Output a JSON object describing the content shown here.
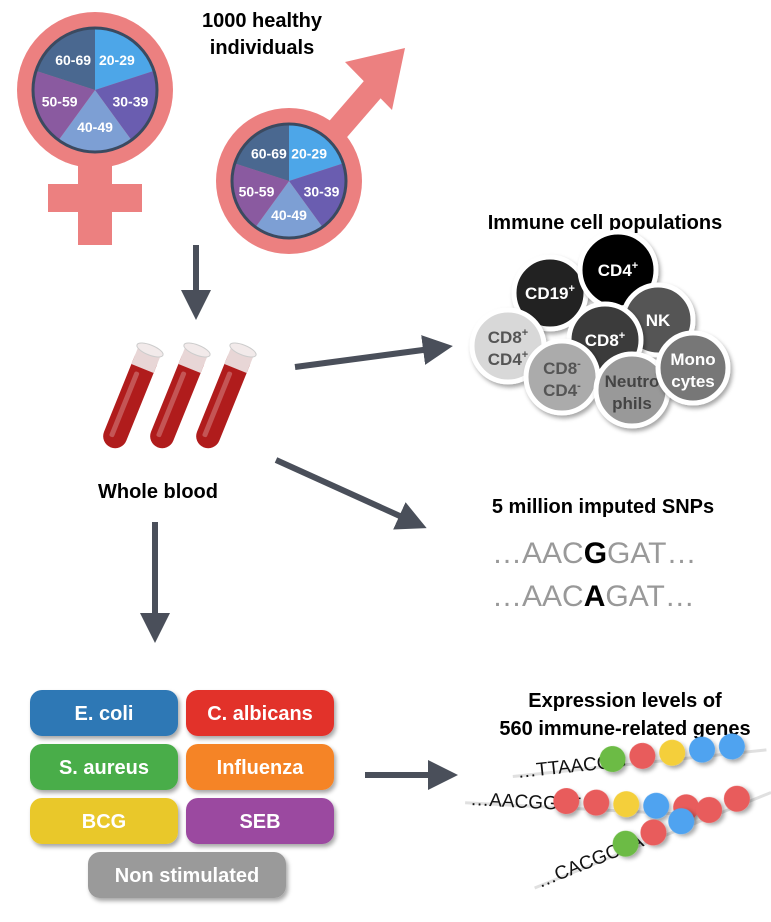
{
  "cohort": {
    "title_line1": "1000 healthy",
    "title_line2": "individuals",
    "age_groups": [
      "20-29",
      "30-39",
      "40-49",
      "50-59",
      "60-69"
    ],
    "age_colors": [
      "#4da6e8",
      "#6a5db0",
      "#7d9fd4",
      "#8a5aa0",
      "#4a6890"
    ],
    "symbol_color": "#ec8080"
  },
  "blood": {
    "label": "Whole blood",
    "tube_color": "#b01c1c"
  },
  "immune": {
    "title": "Immune cell populations",
    "cells": [
      {
        "line1": "CD19",
        "sup1": "+",
        "line2": "",
        "sup2": "",
        "fill": "#222222",
        "text": "#ffffff"
      },
      {
        "line1": "CD4",
        "sup1": "+",
        "line2": "",
        "sup2": "",
        "fill": "#000000",
        "text": "#ffffff"
      },
      {
        "line1": "NK",
        "sup1": "",
        "line2": "",
        "sup2": "",
        "fill": "#555555",
        "text": "#ffffff"
      },
      {
        "line1": "CD8",
        "sup1": "+",
        "line2": "CD4",
        "sup2": "+",
        "fill": "#d8d8d8",
        "text": "#555555"
      },
      {
        "line1": "CD8",
        "sup1": "+",
        "line2": "",
        "sup2": "",
        "fill": "#3a3a3a",
        "text": "#ffffff"
      },
      {
        "line1": "CD8",
        "sup1": "-",
        "line2": "CD4",
        "sup2": "-",
        "fill": "#ababab",
        "text": "#555555"
      },
      {
        "line1": "Neutro",
        "sup1": "",
        "line2": "phils",
        "sup2": "",
        "fill": "#999999",
        "text": "#444444"
      },
      {
        "line1": "Mono",
        "sup1": "",
        "line2": "cytes",
        "sup2": "",
        "fill": "#777777",
        "text": "#ffffff"
      }
    ]
  },
  "snps": {
    "title": "5 million imputed SNPs",
    "seq1": {
      "prefix": "…AAC",
      "variant": "G",
      "suffix": "GAT…"
    },
    "seq2": {
      "prefix": "…AAC",
      "variant": "A",
      "suffix": "GAT…"
    }
  },
  "stimuli": [
    {
      "label": "E. coli",
      "color": "#2f78b5"
    },
    {
      "label": "C. albicans",
      "color": "#e2312b"
    },
    {
      "label": "S. aureus",
      "color": "#4aad48"
    },
    {
      "label": "Influenza",
      "color": "#f58426"
    },
    {
      "label": "BCG",
      "color": "#e9c82a"
    },
    {
      "label": "SEB",
      "color": "#9b4aa0"
    },
    {
      "label": "Non stimulated",
      "color": "#9a9a9a"
    }
  ],
  "expression": {
    "title_line1": "Expression levels of",
    "title_line2": "560 immune-related genes",
    "sequences": [
      {
        "text": "…TTAACGG",
        "beads": [
          "#6cbb45",
          "#e85c5c",
          "#f4cf3a",
          "#4fa3f0",
          "#4fa3f0"
        ]
      },
      {
        "text": "…AACGGAT",
        "beads": [
          "#e85c5c",
          "#e85c5c",
          "#f4cf3a",
          "#4fa3f0",
          "#e85c5c"
        ]
      },
      {
        "text": "…CACGCAA",
        "beads": [
          "#6cbb45",
          "#e85c5c",
          "#4fa3f0",
          "#e85c5c",
          "#e85c5c"
        ]
      }
    ]
  },
  "arrow_color": "#4a4f5a"
}
